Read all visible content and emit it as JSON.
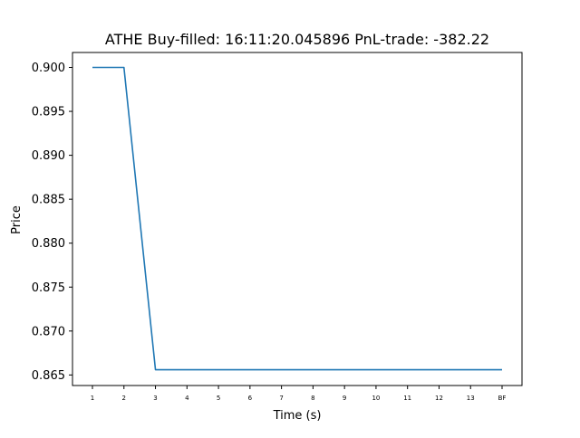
{
  "chart_data": {
    "type": "line",
    "title": "ATHE  Buy-filled:  16:11:20.045896  PnL-trade:  -382.22",
    "xlabel": "Time (s)",
    "ylabel": "Price",
    "categories": [
      "1",
      "2",
      "3",
      "4",
      "5",
      "6",
      "7",
      "8",
      "9",
      "10",
      "11",
      "12",
      "13",
      "BF"
    ],
    "series": [
      {
        "values": [
          0.9,
          0.9,
          0.8656,
          0.8656,
          0.8656,
          0.8656,
          0.8656,
          0.8656,
          0.8656,
          0.8656,
          0.8656,
          0.8656,
          0.8656,
          0.8656
        ],
        "color": "#1f77b4"
      }
    ],
    "ylim": [
      0.8638,
      0.9017
    ],
    "yticks": [
      "0.865",
      "0.870",
      "0.875",
      "0.880",
      "0.885",
      "0.890",
      "0.895",
      "0.900"
    ],
    "grid": false,
    "legend": "none"
  }
}
